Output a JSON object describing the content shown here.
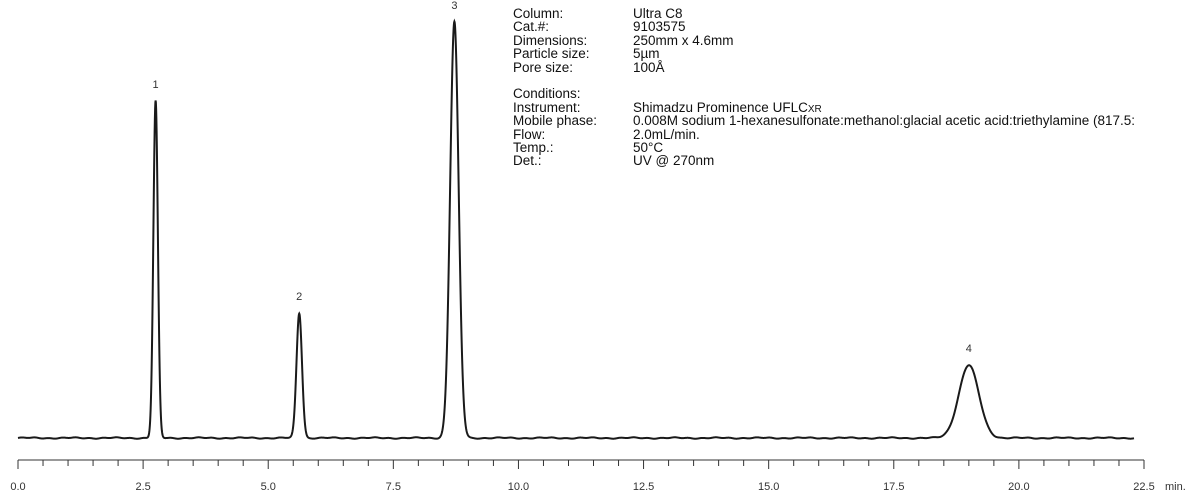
{
  "chart_data": {
    "type": "line",
    "title": "",
    "xlabel": "min.",
    "ylabel": "",
    "xlim": [
      0.0,
      22.5
    ],
    "ylim": [
      0,
      1.0
    ],
    "grid": false,
    "x_ticks": [
      "0.0",
      "2.5",
      "5.0",
      "7.5",
      "10.0",
      "12.5",
      "15.0",
      "17.5",
      "20.0",
      "22.5"
    ],
    "peaks": [
      {
        "label": "1",
        "x": 2.75,
        "height": 0.81,
        "width": 0.045
      },
      {
        "label": "2",
        "x": 5.62,
        "height": 0.3,
        "width": 0.055
      },
      {
        "label": "3",
        "x": 8.72,
        "height": 1.0,
        "width": 0.085
      },
      {
        "label": "4",
        "x": 19.0,
        "height": 0.175,
        "width": 0.2
      }
    ],
    "color": "#1a1a1a"
  },
  "info": {
    "column_label": "Column:",
    "column_value": "Ultra C8",
    "cat_label": "Cat.#:",
    "cat_value": "9103575",
    "dim_label": "Dimensions:",
    "dim_value": "250mm x 4.6mm",
    "particle_label": "Particle size:",
    "particle_value": "5µm",
    "pore_label": "Pore size:",
    "pore_value": "100Å",
    "conditions_label": "Conditions:",
    "instrument_label": "Instrument:",
    "instrument_value": "Shimadzu Prominence UFLC",
    "instrument_suffix": "XR",
    "mobile_label": "Mobile phase:",
    "mobile_value": "0.008M sodium 1-hexanesulfonate:methanol:glacial acetic acid:triethylamine (817.5:",
    "flow_label": "Flow:",
    "flow_value": "2.0mL/min.",
    "temp_label": "Temp.:",
    "temp_value": "50°C",
    "det_label": "Det.:",
    "det_value": "UV @ 270nm"
  }
}
